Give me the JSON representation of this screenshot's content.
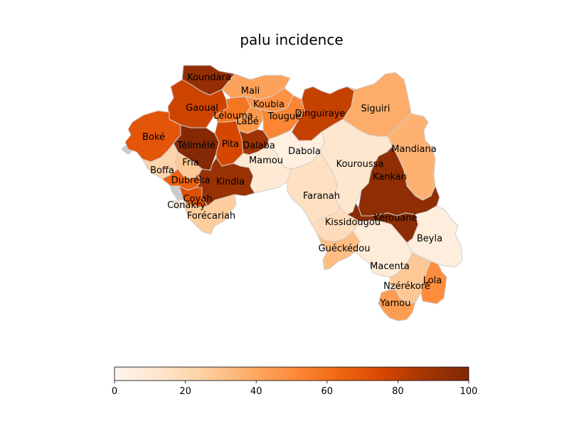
{
  "title": "palu incidence",
  "colorbar": {
    "min": 0,
    "max": 100,
    "ticks": [
      "0",
      "20",
      "40",
      "60",
      "80",
      "100"
    ],
    "colormap": "Oranges"
  },
  "colors": {
    "border": "#cfcfcf",
    "neighbor_land": "#cccccc",
    "background": "#ffffff"
  },
  "prefectures": [
    {
      "name": "Koundara",
      "value": 93
    },
    {
      "name": "Mali",
      "value": 42
    },
    {
      "name": "Gaoual",
      "value": 78
    },
    {
      "name": "Koubia",
      "value": 48
    },
    {
      "name": "Lélouma",
      "value": 58
    },
    {
      "name": "Labé",
      "value": 46
    },
    {
      "name": "Tougué",
      "value": 52
    },
    {
      "name": "Dinguiraye",
      "value": 80
    },
    {
      "name": "Siguiri",
      "value": 38
    },
    {
      "name": "Boké",
      "value": 70
    },
    {
      "name": "Télimélé",
      "value": 98
    },
    {
      "name": "Pita",
      "value": 76
    },
    {
      "name": "Dalaba",
      "value": 90
    },
    {
      "name": "Dabola",
      "value": 4
    },
    {
      "name": "Mandiana",
      "value": 36
    },
    {
      "name": "Fria",
      "value": 28
    },
    {
      "name": "Mamou",
      "value": 10
    },
    {
      "name": "Kouroussa",
      "value": 12
    },
    {
      "name": "Boffa",
      "value": 22
    },
    {
      "name": "Kankan",
      "value": 95
    },
    {
      "name": "Dubréka",
      "value": 66
    },
    {
      "name": "Kindia",
      "value": 92
    },
    {
      "name": "Faranah",
      "value": 16
    },
    {
      "name": "Coyah",
      "value": 72
    },
    {
      "name": "Conakry",
      "value": 12
    },
    {
      "name": "Forécariah",
      "value": 26
    },
    {
      "name": "Kérouané",
      "value": 96
    },
    {
      "name": "Kissidougou",
      "value": 18
    },
    {
      "name": "Beyla",
      "value": 6
    },
    {
      "name": "Guéckédou",
      "value": 32
    },
    {
      "name": "Macenta",
      "value": 8
    },
    {
      "name": "Nzérékoré",
      "value": 28
    },
    {
      "name": "Lola",
      "value": 50
    },
    {
      "name": "Yamou",
      "value": 44
    }
  ]
}
